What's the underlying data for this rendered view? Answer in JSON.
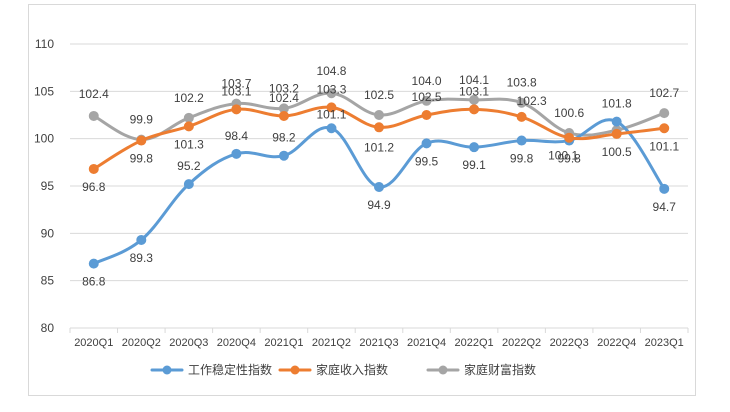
{
  "chart_data": {
    "type": "line",
    "title": "",
    "xlabel": "",
    "ylabel": "",
    "ylim": [
      80,
      110
    ],
    "yticks": [
      80,
      85,
      90,
      95,
      100,
      105,
      110
    ],
    "grid": "horizontal",
    "legend_position": "bottom",
    "categories": [
      "2020Q1",
      "2020Q2",
      "2020Q3",
      "2020Q4",
      "2021Q1",
      "2021Q2",
      "2021Q3",
      "2021Q4",
      "2022Q1",
      "2022Q2",
      "2022Q3",
      "2022Q4",
      "2023Q1"
    ],
    "series": [
      {
        "name": "工作稳定性指数",
        "color": "#5b9bd5",
        "values": [
          86.8,
          89.3,
          95.2,
          98.4,
          98.2,
          101.1,
          94.9,
          99.5,
          99.1,
          99.8,
          99.8,
          101.8,
          94.7
        ],
        "labels": [
          "86.8",
          "89.3",
          "95.2",
          "98.4",
          "98.2",
          "101.1",
          "94.9",
          "99.5",
          "99.1",
          "99.8",
          "99.8",
          "101.8",
          "94.7"
        ]
      },
      {
        "name": "家庭收入指数",
        "color": "#ed7d31",
        "values": [
          96.8,
          99.8,
          101.3,
          103.1,
          102.4,
          103.3,
          101.2,
          102.5,
          103.1,
          102.3,
          100.1,
          100.5,
          101.1
        ],
        "labels": [
          "96.8",
          "99.8",
          "101.3",
          "103.1",
          "102.4",
          "103.3",
          "101.2",
          "102.5",
          "103.1",
          "102.3",
          "100.1",
          "100.5",
          "101.1"
        ]
      },
      {
        "name": "家庭财富指数",
        "color": "#a5a5a5",
        "values": [
          102.4,
          99.9,
          102.2,
          103.7,
          103.2,
          104.8,
          102.5,
          104.0,
          104.1,
          103.8,
          100.6,
          100.9,
          102.7
        ],
        "labels": [
          "102.4",
          "99.9",
          "102.2",
          "103.7",
          "103.2",
          "104.8",
          "102.5",
          "104.0",
          "104.1",
          "103.8",
          "100.6",
          "",
          "102.7"
        ]
      }
    ]
  }
}
